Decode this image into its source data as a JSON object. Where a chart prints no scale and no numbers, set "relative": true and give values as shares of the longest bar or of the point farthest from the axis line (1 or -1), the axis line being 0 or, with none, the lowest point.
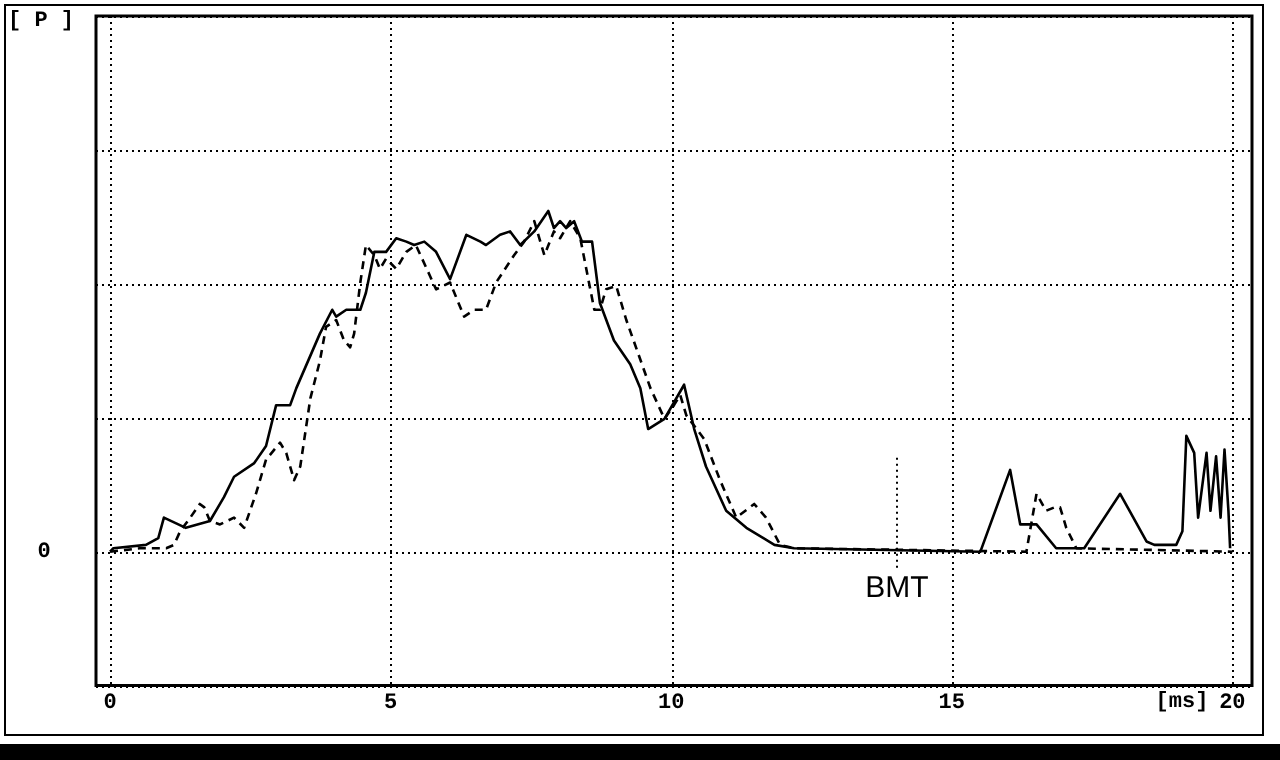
{
  "chart_data": {
    "type": "line",
    "relative": true,
    "xlabel": "[ms]",
    "xlim": [
      -0.25,
      20.35
    ],
    "xticks": [
      0,
      5,
      10,
      15,
      20
    ],
    "annotations": [
      "[ P ]",
      "0"
    ],
    "grid": true,
    "legend": false,
    "marker": "none",
    "series": [
      {
        "color": "#000000",
        "line_style": "solid",
        "x": [
          0,
          0.06,
          0.64,
          0.86,
          0.96,
          1.35,
          1.78,
          2.03,
          2.21,
          2.57,
          2.78,
          2.96,
          3.21,
          3.32,
          3.74,
          3.96,
          4.03,
          4.21,
          4.46,
          4.56,
          4.71,
          4.81,
          4.92,
          5.1,
          5.28,
          5.42,
          5.6,
          5.81,
          6.06,
          6.35,
          6.6,
          6.7,
          6.95,
          7.13,
          7.31,
          7.56,
          7.81,
          7.91,
          8.02,
          8.13,
          8.27,
          8.41,
          8.59,
          8.73,
          8.98,
          9.27,
          9.45,
          9.59,
          9.88,
          10.23,
          10.41,
          10.62,
          10.98,
          11.34,
          11.84,
          12.19,
          15.51,
          16.04,
          16.22,
          16.51,
          16.86,
          17.36,
          18,
          18.47,
          18.61,
          19,
          19.11,
          19.18,
          19.32,
          19.39,
          19.54,
          19.61,
          19.71,
          19.79,
          19.86,
          19.93,
          19.96
        ],
        "values": [
          0,
          0.01,
          0.02,
          0.04,
          0.1,
          0.07,
          0.09,
          0.16,
          0.22,
          0.26,
          0.31,
          0.43,
          0.43,
          0.48,
          0.64,
          0.71,
          0.69,
          0.71,
          0.71,
          0.76,
          0.88,
          0.88,
          0.88,
          0.92,
          0.91,
          0.9,
          0.91,
          0.88,
          0.8,
          0.93,
          0.91,
          0.9,
          0.93,
          0.94,
          0.9,
          0.94,
          1,
          0.95,
          0.97,
          0.95,
          0.97,
          0.91,
          0.91,
          0.73,
          0.62,
          0.55,
          0.48,
          0.36,
          0.39,
          0.49,
          0.36,
          0.25,
          0.12,
          0.07,
          0.02,
          0.01,
          0,
          0.24,
          0.08,
          0.08,
          0.01,
          0.01,
          0.17,
          0.03,
          0.02,
          0.02,
          0.06,
          0.34,
          0.29,
          0.1,
          0.29,
          0.12,
          0.28,
          0.1,
          0.3,
          0.12,
          0.01
        ]
      },
      {
        "color": "#000000",
        "line_style": "dashed",
        "x": [
          0,
          0.53,
          1,
          1.14,
          1.25,
          1.43,
          1.6,
          1.68,
          1.78,
          1.96,
          2.21,
          2.39,
          2.6,
          2.78,
          3.03,
          3.14,
          3.28,
          3.39,
          3.57,
          3.74,
          3.85,
          4.03,
          4.17,
          4.28,
          4.35,
          4.46,
          4.56,
          4.71,
          4.81,
          4.92,
          5.1,
          5.28,
          5.45,
          5.7,
          5.81,
          6.06,
          6.31,
          6.49,
          6.7,
          6.88,
          7.2,
          7.38,
          7.56,
          7.74,
          7.91,
          8.02,
          8.2,
          8.38,
          8.63,
          8.73,
          8.84,
          9.02,
          9.2,
          9.63,
          9.88,
          10.05,
          10.16,
          10.27,
          10.59,
          10.87,
          11.16,
          11.48,
          11.69,
          11.94,
          12.19,
          16.33,
          16.51,
          16.68,
          16.83,
          16.93,
          17.04,
          17.22,
          20
        ],
        "values": [
          0,
          0.01,
          0.01,
          0.02,
          0.06,
          0.1,
          0.14,
          0.13,
          0.09,
          0.08,
          0.1,
          0.07,
          0.17,
          0.27,
          0.32,
          0.29,
          0.21,
          0.25,
          0.45,
          0.56,
          0.66,
          0.68,
          0.62,
          0.6,
          0.64,
          0.79,
          0.9,
          0.87,
          0.83,
          0.86,
          0.83,
          0.88,
          0.9,
          0.81,
          0.77,
          0.79,
          0.69,
          0.71,
          0.71,
          0.79,
          0.87,
          0.91,
          0.97,
          0.87,
          0.94,
          0.92,
          0.97,
          0.92,
          0.71,
          0.71,
          0.77,
          0.78,
          0.68,
          0.48,
          0.39,
          0.43,
          0.46,
          0.4,
          0.33,
          0.21,
          0.1,
          0.14,
          0.1,
          0.02,
          0.01,
          0,
          0.17,
          0.12,
          0.13,
          0.13,
          0.07,
          0.01,
          0
        ]
      }
    ],
    "ref_lines": [
      {
        "axis": "x",
        "value": 14,
        "label": "BMT",
        "line_style": "dotted"
      }
    ]
  }
}
